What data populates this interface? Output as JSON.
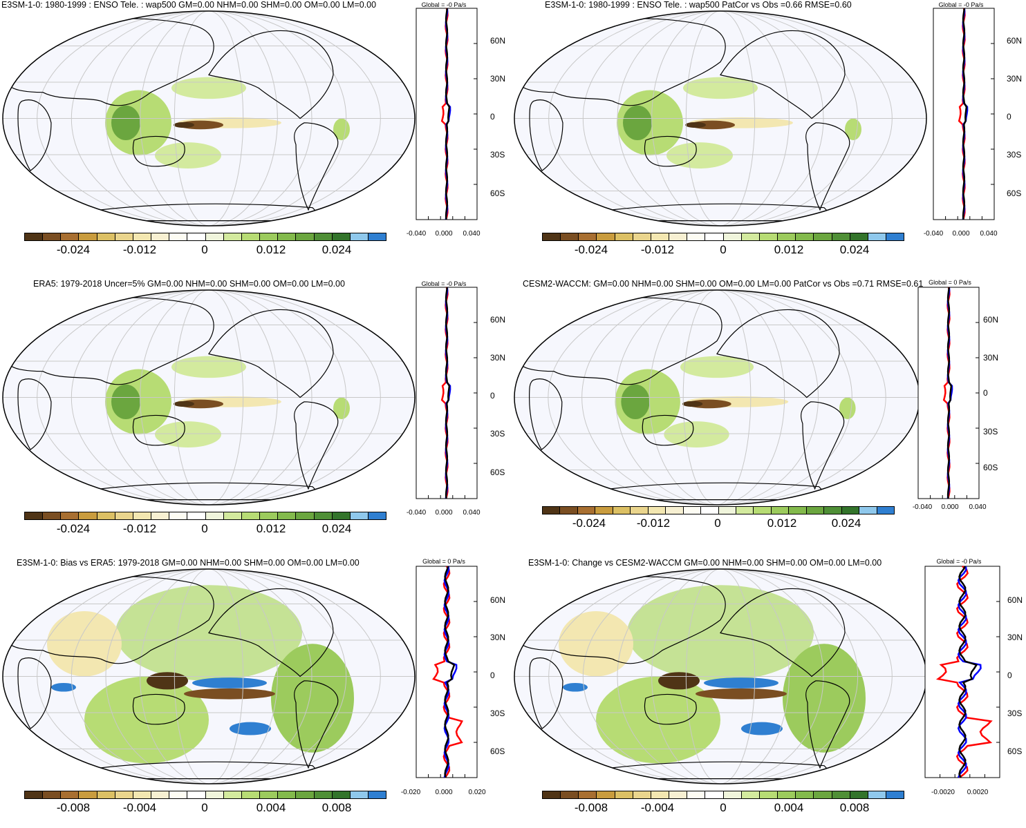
{
  "palette": [
    "#4f3416",
    "#7a4e22",
    "#a86f31",
    "#c99c3e",
    "#dcc064",
    "#ead58d",
    "#f3e7b1",
    "#f7f0d2",
    "#fdfcf3",
    "#ffffff",
    "#f0f5dc",
    "#d3ea9e",
    "#b7dc74",
    "#9ccb5d",
    "#83ba4c",
    "#6ba63f",
    "#4f8f36",
    "#33742b",
    "#8fc8ec",
    "#2f7fd1"
  ],
  "lat_labels": [
    "60N",
    "30N",
    "0",
    "30S",
    "60S"
  ],
  "panels": [
    {
      "title": "E3SM-1-0: 1980-1999 : ENSO Tele. : wap500 GM=0.00 NHM=0.00 SHM=0.00 OM=0.00 LM=0.00",
      "global": "Global = -0 Pa/s",
      "cb_labels": [
        "-0.024",
        "-0.012",
        "0",
        "0.012",
        "0.024"
      ],
      "x_labels": [
        "-0.040",
        "0.000",
        "0.040"
      ]
    },
    {
      "title": "E3SM-1-0: 1980-1999 : ENSO Tele. : wap500 PatCor vs Obs =0.66 RMSE=0.60",
      "global": "Global = -0 Pa/s",
      "cb_labels": [
        "-0.024",
        "-0.012",
        "0",
        "0.012",
        "0.024"
      ],
      "x_labels": [
        "-0.040",
        "0.000",
        "0.040"
      ]
    },
    {
      "title": "ERA5: 1979-2018 Uncer=5% GM=0.00 NHM=0.00 SHM=0.00 OM=0.00 LM=0.00",
      "global": "Global = -0 Pa/s",
      "cb_labels": [
        "-0.024",
        "-0.012",
        "0",
        "0.012",
        "0.024"
      ],
      "x_labels": [
        "-0.040",
        "0.000",
        "0.040"
      ]
    },
    {
      "title": "CESM2-WACCM: GM=0.00 NHM=0.00 SHM=0.00 OM=0.00 LM=0.00 PatCor vs Obs =0.71 RMSE=0.61",
      "global": "Global = 0 Pa/s",
      "cb_labels": [
        "-0.024",
        "-0.012",
        "0",
        "0.012",
        "0.024"
      ],
      "x_labels": [
        "-0.040",
        "0.000",
        "0.040"
      ]
    },
    {
      "title": "E3SM-1-0: Bias vs ERA5: 1979-2018 GM=0.00 NHM=0.00 SHM=0.00 OM=0.00 LM=0.00",
      "global": "Global = 0 Pa/s",
      "cb_labels": [
        "-0.008",
        "-0.004",
        "0",
        "0.004",
        "0.008"
      ],
      "x_labels": [
        "-0.020",
        "0.000",
        "0.020"
      ]
    },
    {
      "title": "E3SM-1-0: Change vs CESM2-WACCM GM=0.00 NHM=0.00 SHM=0.00 OM=0.00 LM=0.00",
      "global": "Global = -0 Pa/s",
      "cb_labels": [
        "-0.008",
        "-0.004",
        "0",
        "0.004",
        "0.008"
      ],
      "x_labels": [
        "-0.0020",
        "0.0020"
      ]
    }
  ]
}
